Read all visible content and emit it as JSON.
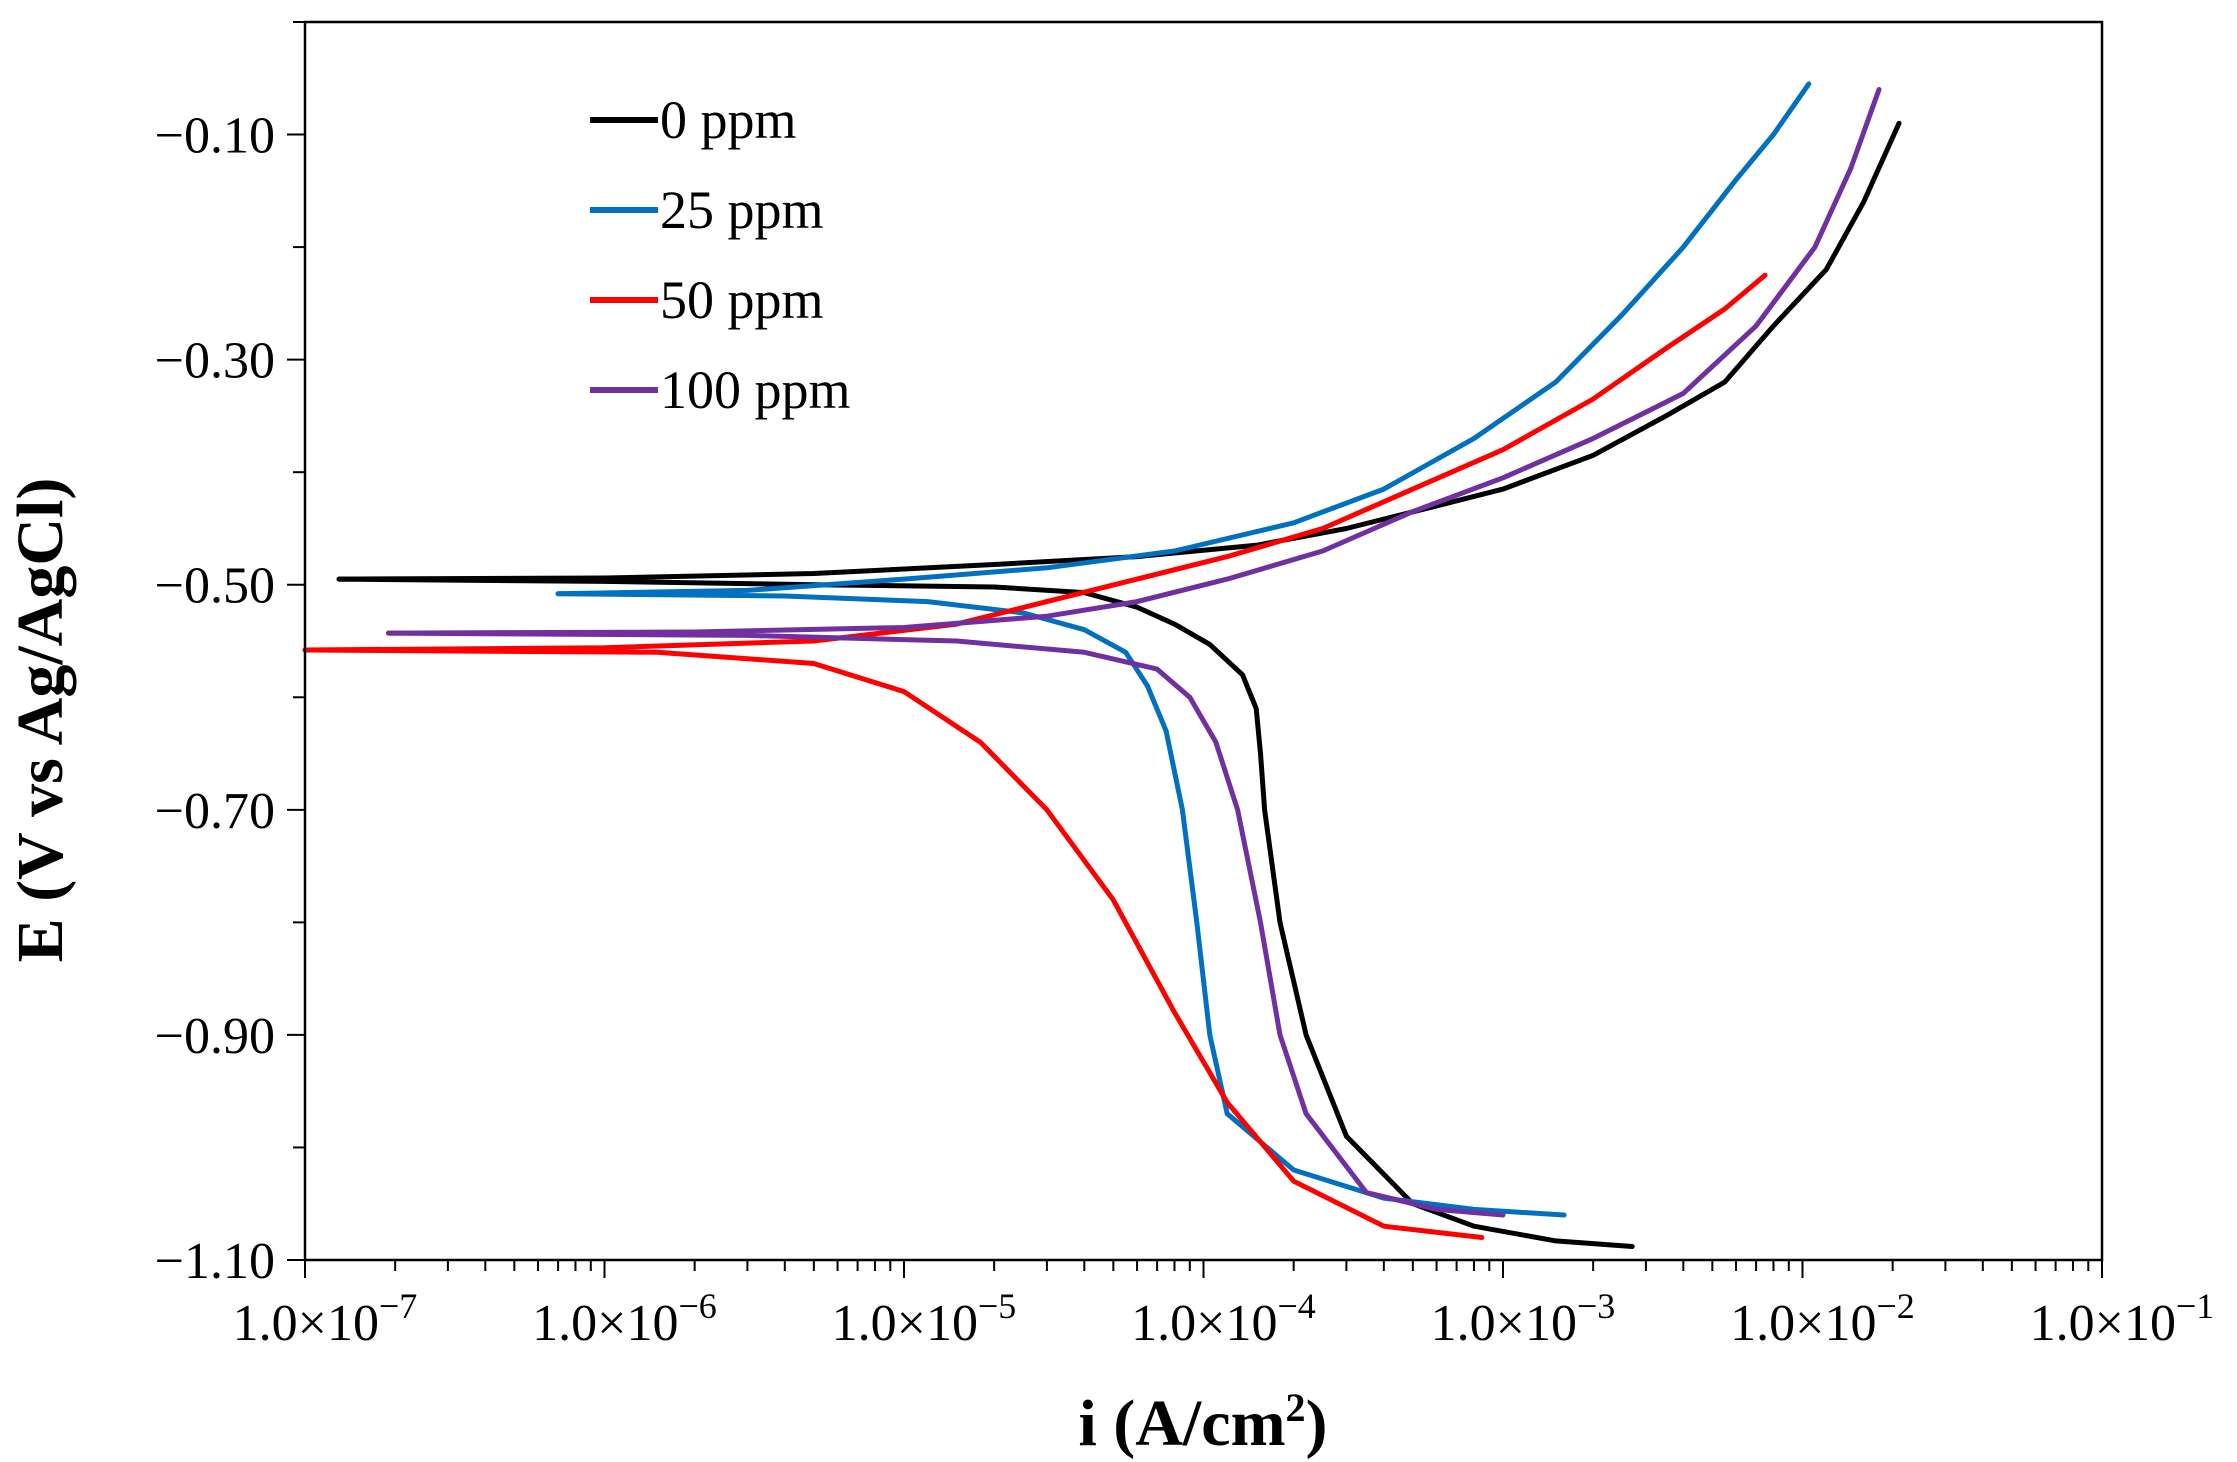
{
  "chart_data": {
    "type": "line",
    "title": "",
    "xlabel_base": "i (A/cm",
    "xlabel_sup": "2",
    "xlabel_close": ")",
    "ylabel": "E (V vs Ag/AgCl)",
    "x_scale": "log",
    "xlim": [
      1e-07,
      0.1
    ],
    "ylim": [
      -1.1,
      0.0
    ],
    "x_ticks": [
      {
        "value": 1e-07,
        "mant": "1.0×10",
        "exp": "−7"
      },
      {
        "value": 1e-06,
        "mant": "1.0×10",
        "exp": "−6"
      },
      {
        "value": 1e-05,
        "mant": "1.0×10",
        "exp": "−5"
      },
      {
        "value": 0.0001,
        "mant": "1.0×10",
        "exp": "−4"
      },
      {
        "value": 0.001,
        "mant": "1.0×10",
        "exp": "−3"
      },
      {
        "value": 0.01,
        "mant": "1.0×10",
        "exp": "−2"
      },
      {
        "value": 0.1,
        "mant": "1.0×10",
        "exp": "−1"
      }
    ],
    "y_ticks": [
      {
        "value": -0.1,
        "label": "−0.10"
      },
      {
        "value": -0.3,
        "label": "−0.30"
      },
      {
        "value": -0.5,
        "label": "−0.50"
      },
      {
        "value": -0.7,
        "label": "−0.70"
      },
      {
        "value": -0.9,
        "label": "−0.90"
      },
      {
        "value": -1.1,
        "label": "−1.10"
      }
    ],
    "y_minor_step": 0.1,
    "grid": false,
    "legend_position": "top-left",
    "series": [
      {
        "name": "0 ppm",
        "color": "#000000",
        "cathodic": [
          [
            0.0027,
            -1.088
          ],
          [
            0.0015,
            -1.083
          ],
          [
            0.0008,
            -1.07
          ],
          [
            0.0005,
            -1.05
          ],
          [
            0.0003,
            -0.99
          ],
          [
            0.00022,
            -0.9
          ],
          [
            0.00018,
            -0.8
          ],
          [
            0.00016,
            -0.7
          ],
          [
            0.000155,
            -0.65
          ],
          [
            0.00015,
            -0.61
          ],
          [
            0.000135,
            -0.58
          ],
          [
            0.000105,
            -0.553
          ],
          [
            8e-05,
            -0.535
          ],
          [
            6e-05,
            -0.52
          ],
          [
            4e-05,
            -0.507
          ],
          [
            2e-05,
            -0.502
          ],
          [
            5e-06,
            -0.5
          ],
          [
            1e-06,
            -0.497
          ],
          [
            1.3e-07,
            -0.495
          ]
        ],
        "anodic": [
          [
            1.3e-07,
            -0.495
          ],
          [
            1e-06,
            -0.494
          ],
          [
            5e-06,
            -0.49
          ],
          [
            2e-05,
            -0.482
          ],
          [
            6e-05,
            -0.475
          ],
          [
            0.00015,
            -0.465
          ],
          [
            0.0003,
            -0.45
          ],
          [
            0.0006,
            -0.43
          ],
          [
            0.001,
            -0.415
          ],
          [
            0.002,
            -0.385
          ],
          [
            0.0035,
            -0.35
          ],
          [
            0.0055,
            -0.32
          ],
          [
            0.008,
            -0.27
          ],
          [
            0.012,
            -0.22
          ],
          [
            0.016,
            -0.16
          ],
          [
            0.021,
            -0.09
          ]
        ]
      },
      {
        "name": "25 ppm",
        "color": "#0070c0",
        "cathodic": [
          [
            0.0016,
            -1.06
          ],
          [
            0.0008,
            -1.055
          ],
          [
            0.0004,
            -1.045
          ],
          [
            0.0002,
            -1.02
          ],
          [
            0.00012,
            -0.97
          ],
          [
            0.000105,
            -0.9
          ],
          [
            9.5e-05,
            -0.8
          ],
          [
            8.5e-05,
            -0.7
          ],
          [
            7.5e-05,
            -0.63
          ],
          [
            6.5e-05,
            -0.59
          ],
          [
            5.5e-05,
            -0.56
          ],
          [
            4e-05,
            -0.54
          ],
          [
            2.5e-05,
            -0.525
          ],
          [
            1.2e-05,
            -0.515
          ],
          [
            4e-06,
            -0.51
          ],
          [
            7e-07,
            -0.508
          ]
        ],
        "anodic": [
          [
            7e-07,
            -0.508
          ],
          [
            3e-06,
            -0.505
          ],
          [
            1e-05,
            -0.495
          ],
          [
            3e-05,
            -0.485
          ],
          [
            8e-05,
            -0.47
          ],
          [
            0.0002,
            -0.445
          ],
          [
            0.0004,
            -0.415
          ],
          [
            0.0008,
            -0.37
          ],
          [
            0.0015,
            -0.32
          ],
          [
            0.0025,
            -0.26
          ],
          [
            0.004,
            -0.2
          ],
          [
            0.006,
            -0.14
          ],
          [
            0.008,
            -0.1
          ],
          [
            0.0105,
            -0.055
          ]
        ]
      },
      {
        "name": "50 ppm",
        "color": "#ff0000",
        "cathodic": [
          [
            0.00085,
            -1.08
          ],
          [
            0.0004,
            -1.07
          ],
          [
            0.0002,
            -1.03
          ],
          [
            0.00012,
            -0.96
          ],
          [
            8e-05,
            -0.88
          ],
          [
            5e-05,
            -0.78
          ],
          [
            3e-05,
            -0.7
          ],
          [
            1.8e-05,
            -0.64
          ],
          [
            1e-05,
            -0.595
          ],
          [
            5e-06,
            -0.57
          ],
          [
            1.5e-06,
            -0.56
          ],
          [
            1e-07,
            -0.558
          ]
        ],
        "anodic": [
          [
            1e-07,
            -0.558
          ],
          [
            1e-06,
            -0.556
          ],
          [
            5e-06,
            -0.55
          ],
          [
            1.5e-05,
            -0.535
          ],
          [
            3e-05,
            -0.515
          ],
          [
            6e-05,
            -0.495
          ],
          [
            0.00012,
            -0.475
          ],
          [
            0.00025,
            -0.45
          ],
          [
            0.0005,
            -0.415
          ],
          [
            0.001,
            -0.38
          ],
          [
            0.002,
            -0.335
          ],
          [
            0.0035,
            -0.29
          ],
          [
            0.0055,
            -0.255
          ],
          [
            0.0075,
            -0.225
          ]
        ]
      },
      {
        "name": "100 ppm",
        "color": "#7030a0",
        "cathodic": [
          [
            0.001,
            -1.06
          ],
          [
            0.0006,
            -1.055
          ],
          [
            0.00035,
            -1.04
          ],
          [
            0.00022,
            -0.97
          ],
          [
            0.00018,
            -0.9
          ],
          [
            0.000155,
            -0.8
          ],
          [
            0.00013,
            -0.7
          ],
          [
            0.00011,
            -0.64
          ],
          [
            9e-05,
            -0.6
          ],
          [
            7e-05,
            -0.575
          ],
          [
            4e-05,
            -0.56
          ],
          [
            1.5e-05,
            -0.55
          ],
          [
            3e-06,
            -0.545
          ],
          [
            1.9e-07,
            -0.543
          ]
        ],
        "anodic": [
          [
            1.9e-07,
            -0.543
          ],
          [
            2e-06,
            -0.542
          ],
          [
            1e-05,
            -0.538
          ],
          [
            3e-05,
            -0.528
          ],
          [
            6e-05,
            -0.515
          ],
          [
            0.00012,
            -0.495
          ],
          [
            0.00025,
            -0.47
          ],
          [
            0.0005,
            -0.435
          ],
          [
            0.001,
            -0.405
          ],
          [
            0.002,
            -0.37
          ],
          [
            0.004,
            -0.33
          ],
          [
            0.007,
            -0.27
          ],
          [
            0.011,
            -0.2
          ],
          [
            0.0145,
            -0.13
          ],
          [
            0.018,
            -0.06
          ]
        ]
      }
    ]
  }
}
